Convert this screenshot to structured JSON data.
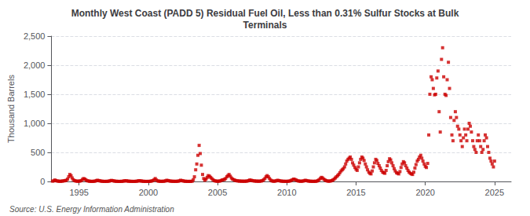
{
  "chart_data": {
    "type": "scatter",
    "title": "Monthly West Coast (PADD 5) Residual Fuel Oil, Less than 0.31% Sulfur Stocks at Bulk\nTerminals",
    "ylabel": "Thousand Barrels",
    "source": "Source: U.S. Energy Information Administration",
    "color": "#cc0000",
    "marker": "square",
    "grid": true,
    "xlim": [
      1993.0,
      2026.2
    ],
    "xticks": [
      1995,
      2000,
      2005,
      2010,
      2015,
      2020,
      2025
    ],
    "ylim": [
      0,
      2500
    ],
    "yticks": [
      0,
      500,
      {
        "value": 1000,
        "label": "1,000"
      },
      {
        "value": 1500,
        "label": "1,500"
      },
      {
        "value": 2000,
        "label": "2,000"
      },
      {
        "value": 2500,
        "label": "2,500"
      }
    ],
    "x": [
      1993.08,
      1993.17,
      1993.25,
      1993.33,
      1993.42,
      1993.5,
      1993.58,
      1993.67,
      1993.75,
      1993.83,
      1993.92,
      1994.0,
      1994.08,
      1994.17,
      1994.25,
      1994.33,
      1994.42,
      1994.5,
      1994.58,
      1994.67,
      1994.75,
      1994.83,
      1994.92,
      1995.0,
      1995.08,
      1995.17,
      1995.25,
      1995.33,
      1995.42,
      1995.5,
      1995.58,
      1995.67,
      1995.75,
      1995.83,
      1995.92,
      1996.0,
      1996.08,
      1996.17,
      1996.25,
      1996.33,
      1996.42,
      1996.5,
      1996.58,
      1996.67,
      1996.75,
      1996.83,
      1996.92,
      1997.0,
      1997.08,
      1997.17,
      1997.25,
      1997.33,
      1997.42,
      1997.5,
      1997.58,
      1997.67,
      1997.75,
      1997.83,
      1997.92,
      1998.0,
      1998.08,
      1998.17,
      1998.25,
      1998.33,
      1998.42,
      1998.5,
      1998.58,
      1998.67,
      1998.75,
      1998.83,
      1998.92,
      1999.0,
      1999.08,
      1999.17,
      1999.25,
      1999.33,
      1999.42,
      1999.5,
      1999.58,
      1999.67,
      1999.75,
      1999.83,
      1999.92,
      2000.0,
      2000.08,
      2000.17,
      2000.25,
      2000.33,
      2000.42,
      2000.5,
      2000.58,
      2000.67,
      2000.75,
      2000.83,
      2000.92,
      2001.0,
      2001.08,
      2001.17,
      2001.25,
      2001.33,
      2001.42,
      2001.5,
      2001.58,
      2001.67,
      2001.75,
      2001.83,
      2001.92,
      2002.0,
      2002.08,
      2002.17,
      2002.25,
      2002.33,
      2002.42,
      2002.5,
      2002.58,
      2002.67,
      2002.75,
      2002.83,
      2002.92,
      2003.0,
      2003.08,
      2003.17,
      2003.25,
      2003.33,
      2003.42,
      2003.5,
      2003.58,
      2003.67,
      2003.75,
      2003.83,
      2003.92,
      2004.0,
      2004.08,
      2004.17,
      2004.25,
      2004.33,
      2004.42,
      2004.5,
      2004.58,
      2004.67,
      2004.75,
      2004.83,
      2004.92,
      2005.0,
      2005.08,
      2005.17,
      2005.25,
      2005.33,
      2005.42,
      2005.5,
      2005.58,
      2005.67,
      2005.75,
      2005.83,
      2005.92,
      2006.0,
      2006.08,
      2006.17,
      2006.25,
      2006.33,
      2006.42,
      2006.5,
      2006.58,
      2006.67,
      2006.75,
      2006.83,
      2006.92,
      2007.0,
      2007.08,
      2007.17,
      2007.25,
      2007.33,
      2007.42,
      2007.5,
      2007.58,
      2007.67,
      2007.75,
      2007.83,
      2007.92,
      2008.0,
      2008.08,
      2008.17,
      2008.25,
      2008.33,
      2008.42,
      2008.5,
      2008.58,
      2008.67,
      2008.75,
      2008.83,
      2008.92,
      2009.0,
      2009.08,
      2009.17,
      2009.25,
      2009.33,
      2009.42,
      2009.5,
      2009.58,
      2009.67,
      2009.75,
      2009.83,
      2009.92,
      2010.0,
      2010.08,
      2010.17,
      2010.25,
      2010.33,
      2010.42,
      2010.5,
      2010.58,
      2010.67,
      2010.75,
      2010.83,
      2010.92,
      2011.0,
      2011.08,
      2011.17,
      2011.25,
      2011.33,
      2011.42,
      2011.5,
      2011.58,
      2011.67,
      2011.75,
      2011.83,
      2011.92,
      2012.0,
      2012.08,
      2012.17,
      2012.25,
      2012.33,
      2012.42,
      2012.5,
      2012.58,
      2012.67,
      2012.75,
      2012.83,
      2012.92,
      2013.0,
      2013.08,
      2013.17,
      2013.25,
      2013.33,
      2013.42,
      2013.5,
      2013.58,
      2013.67,
      2013.75,
      2013.83,
      2013.92,
      2014.0,
      2014.08,
      2014.17,
      2014.25,
      2014.33,
      2014.42,
      2014.5,
      2014.58,
      2014.67,
      2014.75,
      2014.83,
      2014.92,
      2015.0,
      2015.08,
      2015.17,
      2015.25,
      2015.33,
      2015.42,
      2015.5,
      2015.58,
      2015.67,
      2015.75,
      2015.83,
      2015.92,
      2016.0,
      2016.08,
      2016.17,
      2016.25,
      2016.33,
      2016.42,
      2016.5,
      2016.58,
      2016.67,
      2016.75,
      2016.83,
      2016.92,
      2017.0,
      2017.08,
      2017.17,
      2017.25,
      2017.33,
      2017.42,
      2017.5,
      2017.58,
      2017.67,
      2017.75,
      2017.83,
      2017.92,
      2018.0,
      2018.08,
      2018.17,
      2018.25,
      2018.33,
      2018.42,
      2018.5,
      2018.58,
      2018.67,
      2018.75,
      2018.83,
      2018.92,
      2019.0,
      2019.08,
      2019.17,
      2019.25,
      2019.33,
      2019.42,
      2019.5,
      2019.58,
      2019.67,
      2019.75,
      2019.83,
      2019.92,
      2020.0,
      2020.08,
      2020.17,
      2020.25,
      2020.33,
      2020.42,
      2020.5,
      2020.58,
      2020.67,
      2020.75,
      2020.83,
      2020.92,
      2021.0,
      2021.08,
      2021.17,
      2021.25,
      2021.33,
      2021.42,
      2021.5,
      2021.58,
      2021.67,
      2021.75,
      2021.83,
      2021.92,
      2022.0,
      2022.08,
      2022.17,
      2022.25,
      2022.33,
      2022.42,
      2022.5,
      2022.58,
      2022.67,
      2022.75,
      2022.83,
      2022.92,
      2023.0,
      2023.08,
      2023.17,
      2023.25,
      2023.33,
      2023.42,
      2023.5,
      2023.58,
      2023.67,
      2023.75,
      2023.83,
      2023.92,
      2024.0,
      2024.08,
      2024.17,
      2024.25,
      2024.33,
      2024.42,
      2024.5,
      2024.58,
      2024.67,
      2024.75,
      2024.83,
      2024.92,
      2025.0
    ],
    "values": [
      5,
      10,
      25,
      15,
      8,
      5,
      3,
      2,
      5,
      8,
      10,
      15,
      20,
      40,
      80,
      120,
      100,
      60,
      30,
      15,
      8,
      5,
      3,
      5,
      8,
      15,
      35,
      50,
      40,
      25,
      12,
      8,
      4,
      2,
      1,
      2,
      3,
      6,
      15,
      20,
      15,
      10,
      6,
      3,
      2,
      1,
      1,
      2,
      3,
      5,
      12,
      18,
      14,
      9,
      5,
      3,
      2,
      1,
      1,
      1,
      2,
      4,
      8,
      12,
      10,
      7,
      4,
      3,
      2,
      1,
      1,
      1,
      2,
      4,
      8,
      12,
      10,
      7,
      4,
      2,
      1,
      1,
      1,
      1,
      2,
      4,
      8,
      15,
      30,
      50,
      25,
      10,
      5,
      3,
      2,
      2,
      3,
      5,
      10,
      20,
      15,
      10,
      6,
      4,
      3,
      2,
      2,
      2,
      3,
      5,
      10,
      20,
      15,
      10,
      5,
      3,
      2,
      1,
      1,
      1,
      2,
      4,
      30,
      80,
      200,
      300,
      450,
      620,
      480,
      280,
      120,
      50,
      20,
      40,
      70,
      100,
      90,
      70,
      50,
      30,
      15,
      8,
      5,
      4,
      4,
      7,
      15,
      25,
      30,
      35,
      50,
      80,
      100,
      120,
      90,
      60,
      40,
      30,
      20,
      15,
      10,
      8,
      6,
      5,
      4,
      4,
      3,
      4,
      5,
      8,
      15,
      25,
      20,
      15,
      10,
      8,
      6,
      5,
      4,
      4,
      5,
      8,
      15,
      30,
      50,
      80,
      100,
      80,
      50,
      25,
      10,
      5,
      4,
      6,
      12,
      20,
      15,
      10,
      6,
      4,
      3,
      2,
      2,
      2,
      3,
      5,
      10,
      20,
      30,
      40,
      35,
      25,
      15,
      8,
      5,
      4,
      4,
      6,
      12,
      20,
      15,
      10,
      6,
      4,
      3,
      2,
      2,
      2,
      3,
      5,
      15,
      30,
      50,
      70,
      60,
      40,
      25,
      15,
      8,
      5,
      5,
      8,
      15,
      25,
      40,
      60,
      80,
      100,
      120,
      150,
      180,
      200,
      220,
      250,
      300,
      350,
      380,
      400,
      420,
      380,
      320,
      280,
      240,
      210,
      190,
      250,
      320,
      380,
      420,
      400,
      360,
      300,
      250,
      200,
      160,
      140,
      130,
      180,
      250,
      320,
      380,
      360,
      310,
      270,
      230,
      190,
      160,
      150,
      140,
      190,
      270,
      340,
      390,
      370,
      320,
      270,
      220,
      180,
      150,
      140,
      130,
      170,
      240,
      300,
      340,
      320,
      270,
      230,
      190,
      160,
      140,
      130,
      120,
      160,
      230,
      290,
      350,
      380,
      420,
      450,
      400,
      350,
      300,
      260,
      240,
      310,
      800,
      1500,
      1800,
      1750,
      1600,
      1490,
      1500,
      1780,
      1900,
      1200,
      850,
      2100,
      2300,
      1800,
      1500,
      1480,
      1750,
      2050,
      1600,
      1100,
      800,
      700,
      1050,
      1200,
      1100,
      950,
      900,
      800,
      700,
      600,
      750,
      900,
      800,
      700,
      900,
      1000,
      950,
      850,
      700,
      600,
      550,
      500,
      700,
      800,
      700,
      600,
      500,
      550,
      700,
      800,
      750,
      600,
      500,
      400,
      350,
      300,
      250,
      350
    ]
  }
}
